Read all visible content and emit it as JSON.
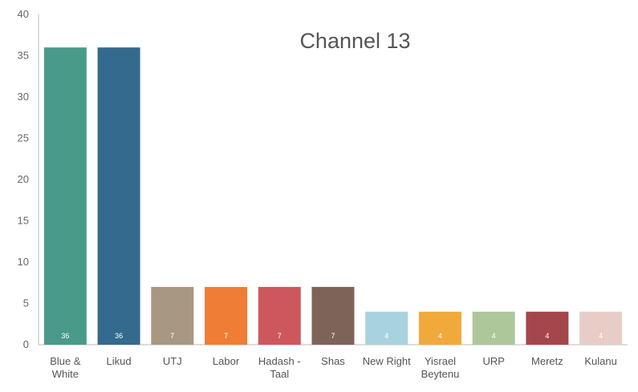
{
  "chart_data": {
    "type": "bar",
    "title": "Channel 13",
    "xlabel": "",
    "ylabel": "",
    "ylim": [
      0,
      40
    ],
    "yticks": [
      0,
      5,
      10,
      15,
      20,
      25,
      30,
      35,
      40
    ],
    "grid": false,
    "legend": "none",
    "categories": [
      "Blue & White",
      "Likud",
      "UTJ",
      "Labor",
      "Hadash - Taal",
      "Shas",
      "New Right",
      "Yisrael Beytenu",
      "URP",
      "Meretz",
      "Kulanu"
    ],
    "category_lines": [
      [
        "Blue &",
        "White"
      ],
      [
        "Likud"
      ],
      [
        "UTJ"
      ],
      [
        "Labor"
      ],
      [
        "Hadash -",
        "Taal"
      ],
      [
        "Shas"
      ],
      [
        "New Right"
      ],
      [
        "Yisrael",
        "Beytenu"
      ],
      [
        "URP"
      ],
      [
        "Meretz"
      ],
      [
        "Kulanu"
      ]
    ],
    "values": [
      36,
      36,
      7,
      7,
      7,
      7,
      4,
      4,
      4,
      4,
      4
    ],
    "data_labels": [
      "36",
      "36",
      "7",
      "7",
      "7",
      "7",
      "4",
      "4",
      "4",
      "4",
      "4"
    ],
    "colors": [
      "#4a9a8a",
      "#336a8e",
      "#a89882",
      "#f07d35",
      "#cc585e",
      "#7e6358",
      "#a8d3de",
      "#f2a93c",
      "#aec79a",
      "#a5464c",
      "#e8cdc6"
    ]
  }
}
